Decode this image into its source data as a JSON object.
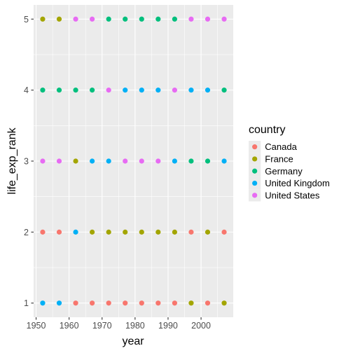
{
  "chart_data": {
    "type": "scatter",
    "xlabel": "year",
    "ylabel": "life_exp_rank",
    "x_ticks": [
      1950,
      1960,
      1970,
      1980,
      1990,
      2000
    ],
    "y_ticks": [
      1,
      2,
      3,
      4,
      5
    ],
    "xlim": [
      1949.25,
      2009.75
    ],
    "ylim": [
      0.8,
      5.2
    ],
    "grid": true,
    "legend": {
      "title": "country",
      "position": "right"
    },
    "x": [
      1952,
      1957,
      1962,
      1967,
      1972,
      1977,
      1982,
      1987,
      1992,
      1997,
      2002,
      2007
    ],
    "series": [
      {
        "name": "Canada",
        "color": "#F8766D",
        "values": [
          2,
          2,
          1,
          1,
          1,
          1,
          1,
          1,
          1,
          2,
          1,
          2
        ]
      },
      {
        "name": "France",
        "color": "#A3A500",
        "values": [
          5,
          5,
          3,
          2,
          2,
          2,
          2,
          2,
          2,
          1,
          2,
          1
        ]
      },
      {
        "name": "Germany",
        "color": "#00BF7D",
        "values": [
          4,
          4,
          4,
          4,
          5,
          5,
          5,
          5,
          5,
          3,
          3,
          4
        ]
      },
      {
        "name": "United Kingdom",
        "color": "#00B0F6",
        "values": [
          1,
          1,
          2,
          3,
          3,
          4,
          4,
          4,
          3,
          4,
          4,
          3
        ]
      },
      {
        "name": "United States",
        "color": "#E76BF3",
        "values": [
          3,
          3,
          5,
          5,
          4,
          3,
          3,
          3,
          4,
          5,
          5,
          5
        ]
      }
    ]
  }
}
